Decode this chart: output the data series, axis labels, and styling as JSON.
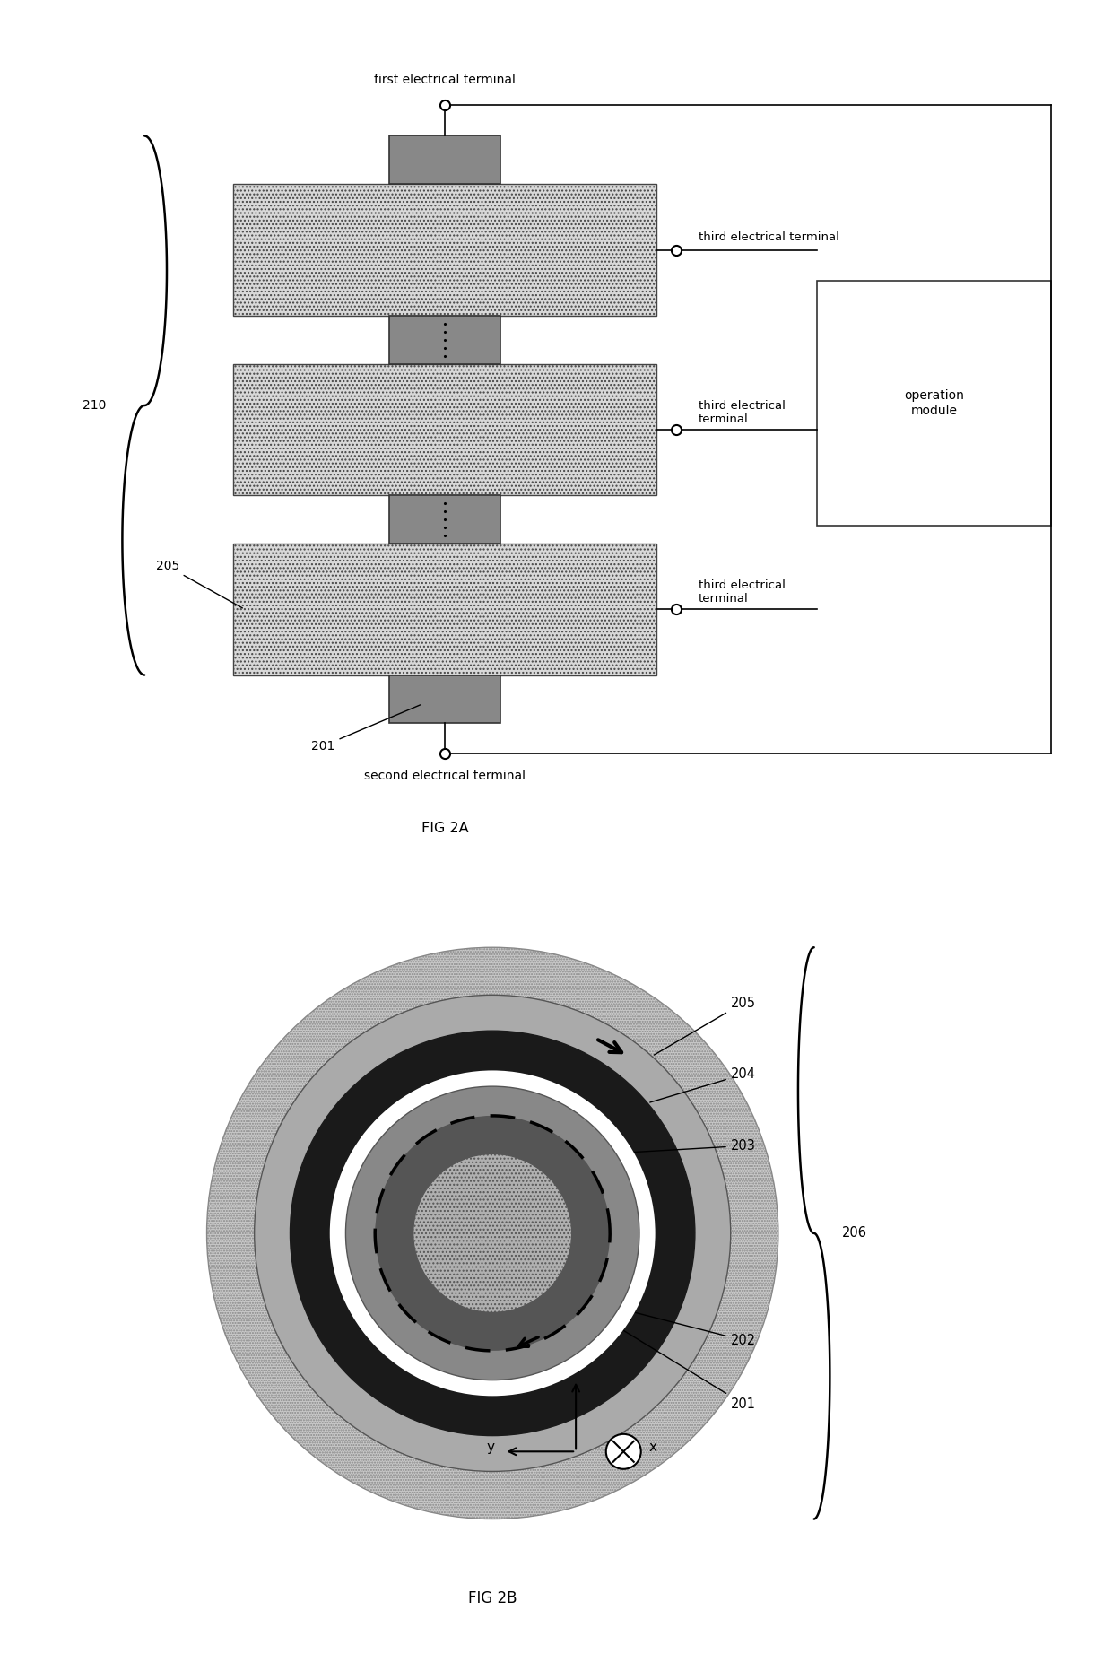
{
  "fig_width": 12.4,
  "fig_height": 18.44,
  "bg_color": "#ffffff",
  "fig2a": {
    "title": "FIG 2A",
    "label_first": "first electrical terminal",
    "label_second": "second electrical terminal",
    "label_third1": "third electrical terminal",
    "label_third2": "third electrical\nterminal",
    "label_third3": "third electrical\nterminal",
    "label_operation": "operation\nmodule",
    "label_210": "210",
    "label_205": "205",
    "label_201": "201"
  },
  "fig2b": {
    "title": "FIG 2B",
    "label_205": "205",
    "label_204": "204",
    "label_203": "203",
    "label_202": "202",
    "label_201": "201",
    "label_206": "206"
  }
}
